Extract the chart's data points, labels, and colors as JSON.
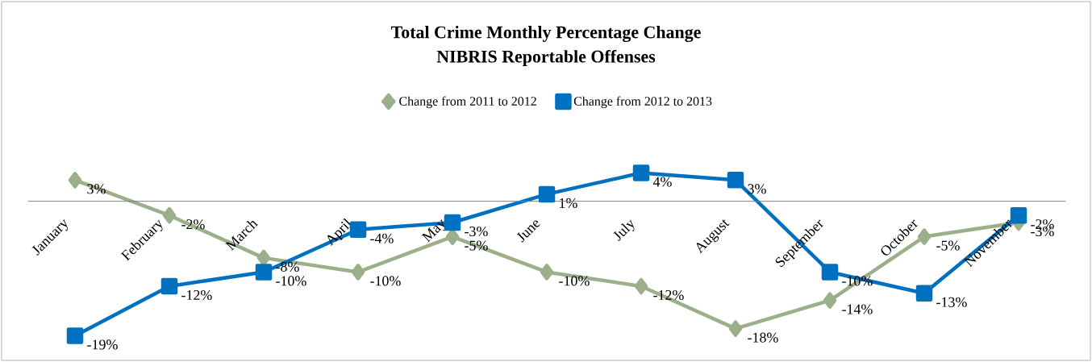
{
  "chart_data": {
    "type": "line",
    "title": "Total Crime Monthly Percentage Change",
    "subtitle": "NIBRIS Reportable Offenses",
    "categories": [
      "January",
      "February",
      "March",
      "April",
      "May",
      "June",
      "July",
      "August",
      "September",
      "October",
      "November"
    ],
    "legend": "top",
    "series": [
      {
        "name": "Change from 2011 to 2012",
        "color": "#9bb08a",
        "marker": "diamond",
        "values": [
          3,
          -2,
          -8,
          -10,
          -5,
          -10,
          -12,
          -18,
          -14,
          -5,
          -3
        ],
        "value_labels": [
          "3%",
          "-2%",
          "-8%",
          "-10%",
          "-5%",
          "-10%",
          "-12%",
          "-18%",
          "-14%",
          "-5%",
          "-3%"
        ]
      },
      {
        "name": "Change from 2012 to 2013",
        "color": "#0070c0",
        "marker": "square",
        "values": [
          -19,
          -12,
          -10,
          -4,
          -3,
          1,
          4,
          3,
          -10,
          -13,
          -2
        ],
        "value_labels": [
          "-19%",
          "-12%",
          "-10%",
          "-4%",
          "-3%",
          "1%",
          "4%",
          "3%",
          "-10%",
          "-13%",
          "-2%"
        ]
      }
    ]
  }
}
